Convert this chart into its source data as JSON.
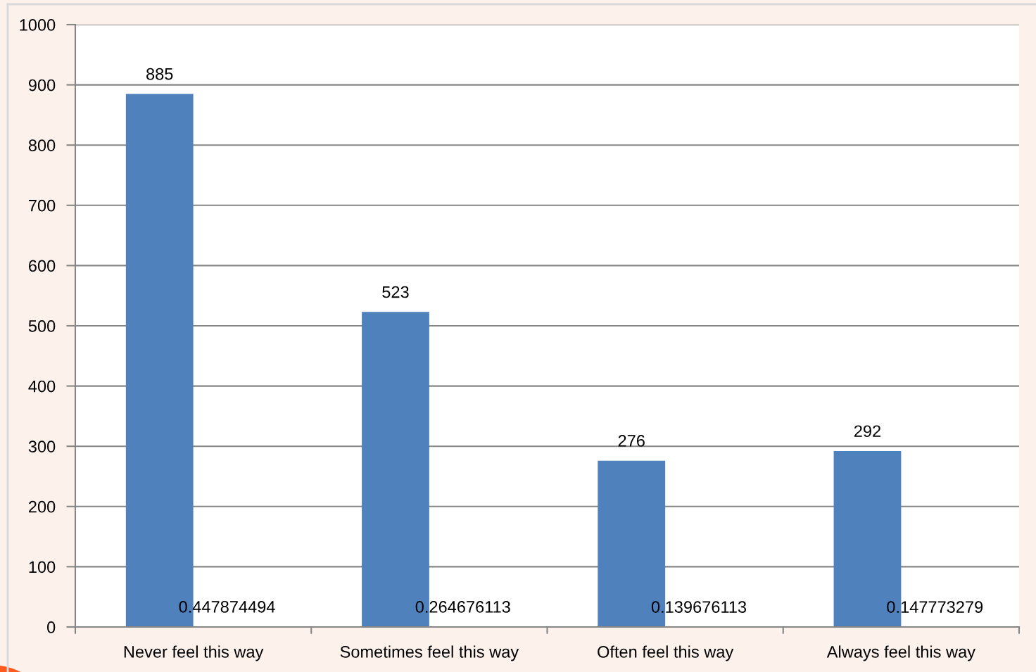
{
  "chart_data": {
    "type": "bar",
    "categories": [
      "Never feel this way",
      "Sometimes feel this way",
      "Often feel this way",
      "Always feel this way"
    ],
    "series": [
      {
        "color": "#4f81bd",
        "values": [
          885,
          523,
          276,
          292
        ]
      },
      {
        "color": "#c0504d",
        "values": [
          0.447874494,
          0.264676113,
          0.139676113,
          0.147773279
        ]
      }
    ],
    "ylim": [
      0,
      1000
    ],
    "yticks": [
      0,
      100,
      200,
      300,
      400,
      500,
      600,
      700,
      800,
      900,
      1000
    ],
    "grid": "y",
    "data_labels": true
  }
}
